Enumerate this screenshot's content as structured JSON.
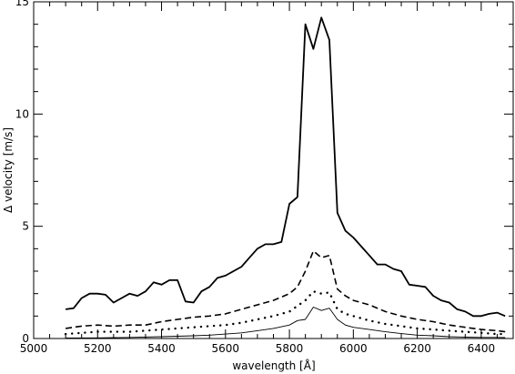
{
  "chart_data": {
    "type": "line",
    "title": "",
    "xlabel": "wavelength [Å]",
    "ylabel": "Δ velocity [m/s]",
    "xlim": [
      5000,
      6500
    ],
    "ylim": [
      0,
      15
    ],
    "x_ticks": [
      5000,
      5200,
      5400,
      5600,
      5800,
      6000,
      6200,
      6400
    ],
    "y_ticks": [
      0,
      5,
      10,
      15
    ],
    "grid": false,
    "legend": "none",
    "series": [
      {
        "style": "solid-thick",
        "points": [
          [
            5100,
            1.3
          ],
          [
            5125,
            1.35
          ],
          [
            5150,
            1.8
          ],
          [
            5175,
            2.0
          ],
          [
            5200,
            2.0
          ],
          [
            5225,
            1.95
          ],
          [
            5250,
            1.6
          ],
          [
            5275,
            1.8
          ],
          [
            5300,
            2.0
          ],
          [
            5325,
            1.9
          ],
          [
            5350,
            2.1
          ],
          [
            5375,
            2.5
          ],
          [
            5400,
            2.4
          ],
          [
            5425,
            2.6
          ],
          [
            5450,
            2.6
          ],
          [
            5475,
            1.65
          ],
          [
            5500,
            1.6
          ],
          [
            5525,
            2.1
          ],
          [
            5550,
            2.3
          ],
          [
            5575,
            2.7
          ],
          [
            5600,
            2.8
          ],
          [
            5625,
            3.0
          ],
          [
            5650,
            3.2
          ],
          [
            5675,
            3.6
          ],
          [
            5700,
            4.0
          ],
          [
            5725,
            4.2
          ],
          [
            5750,
            4.2
          ],
          [
            5775,
            4.3
          ],
          [
            5800,
            6.0
          ],
          [
            5825,
            6.3
          ],
          [
            5850,
            14.0
          ],
          [
            5875,
            12.9
          ],
          [
            5900,
            14.3
          ],
          [
            5925,
            13.3
          ],
          [
            5950,
            5.6
          ],
          [
            5975,
            4.8
          ],
          [
            6000,
            4.5
          ],
          [
            6025,
            4.1
          ],
          [
            6050,
            3.7
          ],
          [
            6075,
            3.3
          ],
          [
            6100,
            3.3
          ],
          [
            6125,
            3.1
          ],
          [
            6150,
            3.0
          ],
          [
            6175,
            2.4
          ],
          [
            6200,
            2.35
          ],
          [
            6225,
            2.3
          ],
          [
            6250,
            1.9
          ],
          [
            6275,
            1.7
          ],
          [
            6300,
            1.6
          ],
          [
            6325,
            1.3
          ],
          [
            6350,
            1.2
          ],
          [
            6375,
            1.0
          ],
          [
            6400,
            1.0
          ],
          [
            6425,
            1.1
          ],
          [
            6450,
            1.15
          ],
          [
            6475,
            1.0
          ]
        ]
      },
      {
        "style": "dashed",
        "points": [
          [
            5100,
            0.45
          ],
          [
            5150,
            0.55
          ],
          [
            5200,
            0.6
          ],
          [
            5250,
            0.55
          ],
          [
            5300,
            0.6
          ],
          [
            5350,
            0.6
          ],
          [
            5400,
            0.75
          ],
          [
            5450,
            0.85
          ],
          [
            5500,
            0.95
          ],
          [
            5550,
            1.0
          ],
          [
            5600,
            1.1
          ],
          [
            5650,
            1.3
          ],
          [
            5700,
            1.5
          ],
          [
            5750,
            1.7
          ],
          [
            5800,
            2.0
          ],
          [
            5825,
            2.3
          ],
          [
            5850,
            3.0
          ],
          [
            5875,
            3.9
          ],
          [
            5900,
            3.6
          ],
          [
            5925,
            3.7
          ],
          [
            5950,
            2.2
          ],
          [
            5975,
            1.9
          ],
          [
            6000,
            1.7
          ],
          [
            6050,
            1.5
          ],
          [
            6100,
            1.2
          ],
          [
            6150,
            1.0
          ],
          [
            6200,
            0.85
          ],
          [
            6250,
            0.75
          ],
          [
            6300,
            0.6
          ],
          [
            6350,
            0.5
          ],
          [
            6400,
            0.4
          ],
          [
            6450,
            0.35
          ],
          [
            6475,
            0.3
          ]
        ]
      },
      {
        "style": "dotted",
        "points": [
          [
            5100,
            0.2
          ],
          [
            5150,
            0.25
          ],
          [
            5200,
            0.3
          ],
          [
            5250,
            0.3
          ],
          [
            5300,
            0.3
          ],
          [
            5350,
            0.35
          ],
          [
            5400,
            0.4
          ],
          [
            5450,
            0.45
          ],
          [
            5500,
            0.5
          ],
          [
            5550,
            0.55
          ],
          [
            5600,
            0.6
          ],
          [
            5650,
            0.7
          ],
          [
            5700,
            0.85
          ],
          [
            5750,
            1.0
          ],
          [
            5800,
            1.2
          ],
          [
            5825,
            1.45
          ],
          [
            5850,
            1.7
          ],
          [
            5875,
            2.1
          ],
          [
            5900,
            2.0
          ],
          [
            5925,
            2.05
          ],
          [
            5950,
            1.3
          ],
          [
            5975,
            1.1
          ],
          [
            6000,
            1.0
          ],
          [
            6050,
            0.8
          ],
          [
            6100,
            0.65
          ],
          [
            6150,
            0.55
          ],
          [
            6200,
            0.45
          ],
          [
            6250,
            0.4
          ],
          [
            6300,
            0.35
          ],
          [
            6350,
            0.3
          ],
          [
            6400,
            0.25
          ],
          [
            6450,
            0.2
          ],
          [
            6475,
            0.2
          ]
        ]
      },
      {
        "style": "solid-thin",
        "points": [
          [
            5100,
            0.02
          ],
          [
            5200,
            0.03
          ],
          [
            5300,
            0.05
          ],
          [
            5400,
            0.08
          ],
          [
            5450,
            0.1
          ],
          [
            5500,
            0.12
          ],
          [
            5550,
            0.15
          ],
          [
            5600,
            0.2
          ],
          [
            5650,
            0.25
          ],
          [
            5700,
            0.35
          ],
          [
            5750,
            0.45
          ],
          [
            5800,
            0.6
          ],
          [
            5825,
            0.8
          ],
          [
            5850,
            0.85
          ],
          [
            5875,
            1.4
          ],
          [
            5900,
            1.25
          ],
          [
            5925,
            1.35
          ],
          [
            5950,
            0.85
          ],
          [
            5975,
            0.6
          ],
          [
            6000,
            0.5
          ],
          [
            6050,
            0.4
          ],
          [
            6100,
            0.3
          ],
          [
            6150,
            0.22
          ],
          [
            6200,
            0.15
          ],
          [
            6250,
            0.12
          ],
          [
            6300,
            0.08
          ],
          [
            6350,
            0.06
          ],
          [
            6400,
            0.05
          ],
          [
            6450,
            0.05
          ],
          [
            6475,
            0.04
          ]
        ]
      }
    ]
  }
}
